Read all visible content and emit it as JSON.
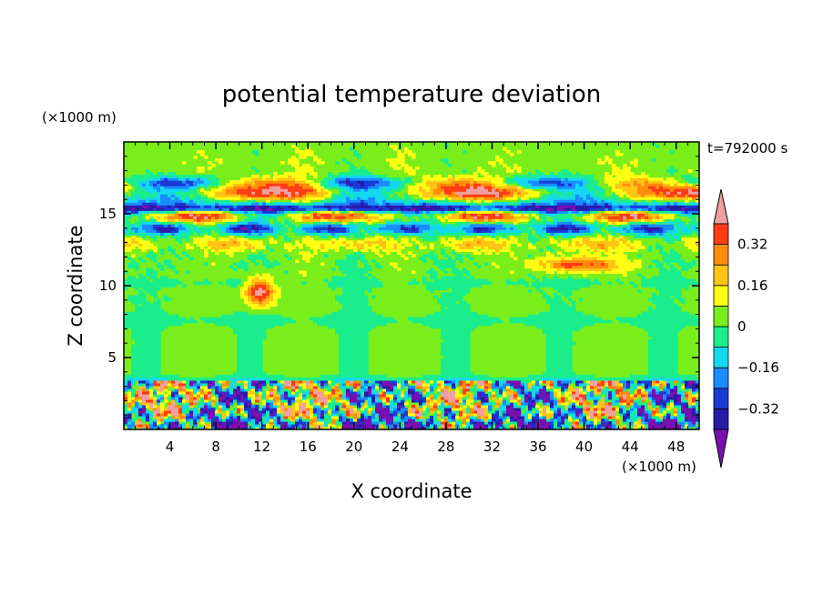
{
  "chart_data": {
    "type": "heatmap",
    "title": "potential temperature deviation",
    "xlabel": "X coordinate",
    "ylabel": "Z coordinate",
    "x_unit": "(×1000 m)",
    "y_unit": "(×1000 m)",
    "time_label": "t=792000 s",
    "xlim": [
      0,
      50
    ],
    "ylim": [
      0,
      20
    ],
    "x_ticks": [
      4,
      8,
      12,
      16,
      20,
      24,
      28,
      32,
      36,
      40,
      44,
      48
    ],
    "y_ticks": [
      5,
      10,
      15
    ],
    "colorbar": {
      "levels": [
        -0.48,
        -0.4,
        -0.32,
        -0.24,
        -0.16,
        -0.08,
        0,
        0.08,
        0.16,
        0.24,
        0.32,
        0.4
      ],
      "labels": [
        "0.32",
        "0.16",
        "0",
        "−0.16",
        "−0.32"
      ],
      "label_values": [
        0.32,
        0.16,
        0,
        -0.16,
        -0.32
      ],
      "colors": [
        "#7a0fb0",
        "#2a1aa8",
        "#1a3ad6",
        "#1a8cff",
        "#14d8f0",
        "#1aee8c",
        "#7aee1a",
        "#ffff14",
        "#ffc414",
        "#ff8c0a",
        "#ff3c14",
        "#f0a0a0"
      ],
      "extend": "both"
    },
    "bands": [
      {
        "z": [
          0,
          3.5
        ],
        "description": "turbulent boundary layer",
        "mean": 0.0
      },
      {
        "z": [
          3.5,
          8
        ],
        "description": "mostly near-zero",
        "mean": 0.02
      },
      {
        "z": [
          8,
          12
        ],
        "description": "weak anomalies with isolated warm patch near x=12",
        "mean": 0.04
      },
      {
        "z": [
          12,
          17
        ],
        "description": "strong warm/cold alternating layers",
        "mean": 0.0
      },
      {
        "z": [
          17,
          20
        ],
        "description": "near-zero to slightly positive",
        "mean": 0.04
      }
    ]
  }
}
